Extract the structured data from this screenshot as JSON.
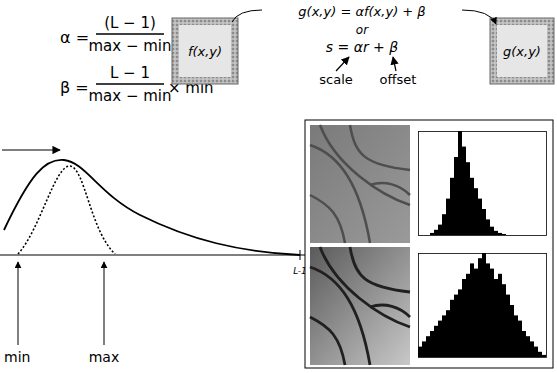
{
  "formulas": {
    "alpha": {
      "lhs": "α =",
      "numerator": "(L − 1)",
      "denominator": "max − min"
    },
    "beta": {
      "lhs": "β =",
      "numerator": "L − 1",
      "denominator": "max − min",
      "suffix": "× min"
    }
  },
  "transform": {
    "input": "f(x,y)",
    "output": "g(x,y)",
    "equation": "g(x,y) = αf(x,y) + β",
    "connector": "or",
    "equation_short": "s = αr + β",
    "annotations": [
      "scale",
      "offset"
    ]
  },
  "sketch": {
    "axis_end_label": "L-1",
    "markers": [
      "min",
      "max"
    ]
  },
  "chart_data": [
    {
      "type": "histogram",
      "color": "#000000",
      "bins": [
        0,
        8,
        16,
        24,
        32,
        40,
        48,
        56,
        64,
        72,
        80,
        88,
        96,
        104,
        112,
        120,
        128,
        136,
        144,
        152,
        160,
        168,
        176,
        184,
        192,
        200,
        208,
        216,
        224,
        232,
        240,
        248,
        256
      ],
      "counts": [
        0,
        0,
        0,
        2,
        5,
        10,
        20,
        35,
        55,
        75,
        100,
        85,
        70,
        55,
        45,
        35,
        25,
        15,
        8,
        4,
        2,
        1,
        0,
        0,
        0,
        0,
        0,
        0,
        0,
        0,
        0,
        0
      ],
      "xlim": [
        0,
        256
      ],
      "ylim": [
        0,
        100
      ],
      "tick_labels": false
    },
    {
      "type": "histogram",
      "color": "#000000",
      "bins": [
        0,
        8,
        16,
        24,
        32,
        40,
        48,
        56,
        64,
        72,
        80,
        88,
        96,
        104,
        112,
        120,
        128,
        136,
        144,
        152,
        160,
        168,
        176,
        184,
        192,
        200,
        208,
        216,
        224,
        232,
        240,
        248,
        256
      ],
      "counts": [
        10,
        15,
        20,
        25,
        30,
        35,
        40,
        45,
        55,
        60,
        65,
        75,
        80,
        90,
        85,
        95,
        100,
        90,
        85,
        75,
        80,
        70,
        60,
        50,
        40,
        35,
        25,
        20,
        15,
        10,
        5,
        2
      ],
      "xlim": [
        0,
        256
      ],
      "ylim": [
        0,
        100
      ],
      "tick_labels": false
    }
  ]
}
